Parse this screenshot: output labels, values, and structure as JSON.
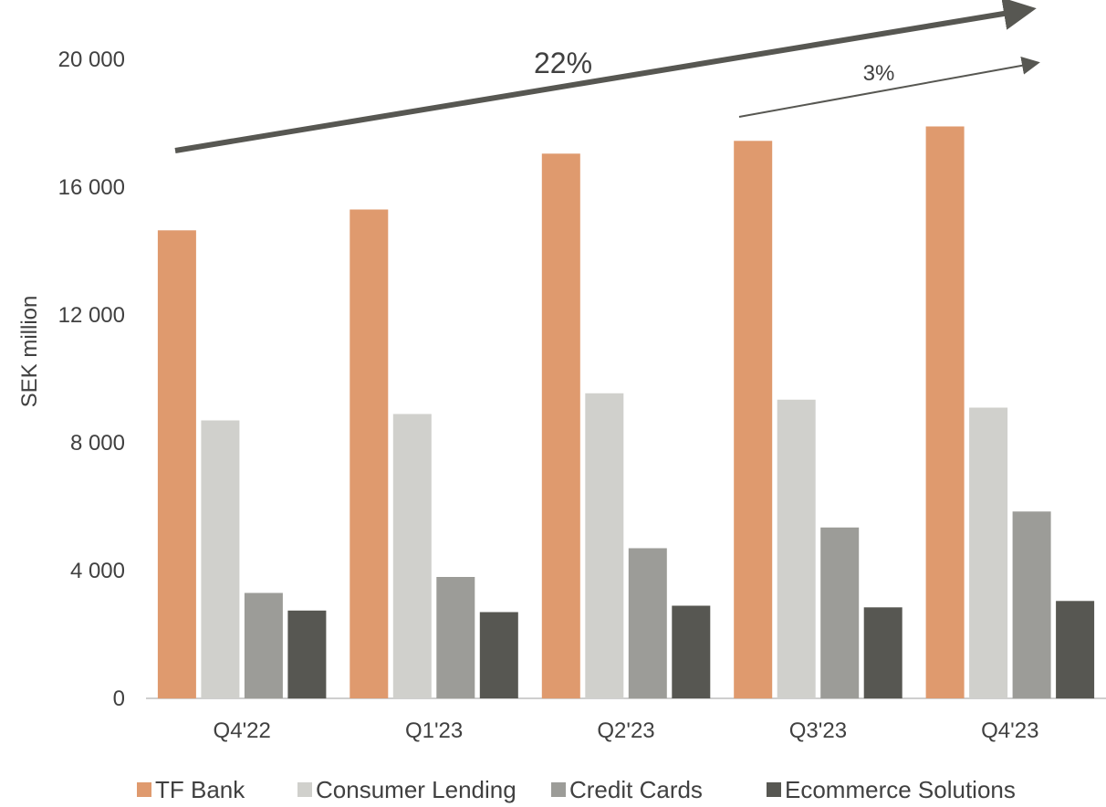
{
  "chart_data": {
    "type": "bar",
    "title": "",
    "xlabel": "",
    "ylabel": "SEK million",
    "ylim": [
      0,
      20000
    ],
    "yticks": [
      0,
      4000,
      8000,
      12000,
      16000,
      20000
    ],
    "ytick_labels": [
      "0",
      "4 000",
      "8 000",
      "12 000",
      "16 000",
      "20 000"
    ],
    "categories": [
      "Q4'22",
      "Q1'23",
      "Q2'23",
      "Q3'23",
      "Q4'23"
    ],
    "series": [
      {
        "name": "TF Bank",
        "color": "#df9a6e",
        "values": [
          14650,
          15300,
          17050,
          17450,
          17900
        ]
      },
      {
        "name": "Consumer Lending",
        "color": "#d0d0cc",
        "values": [
          8700,
          8900,
          9550,
          9350,
          9100
        ]
      },
      {
        "name": "Credit Cards",
        "color": "#9c9c98",
        "values": [
          3300,
          3800,
          4700,
          5350,
          5850
        ]
      },
      {
        "name": "Ecommerce Solutions",
        "color": "#575752",
        "values": [
          2750,
          2700,
          2900,
          2850,
          3050
        ]
      }
    ],
    "annotations": [
      {
        "label": "22%",
        "from_category": "Q4'22",
        "to_category": "Q4'23",
        "kind": "growth-arrow"
      },
      {
        "label": "3%",
        "from_category": "Q3'23",
        "to_category": "Q4'23",
        "kind": "growth-arrow"
      }
    ],
    "legend_position": "bottom",
    "grid": false
  }
}
